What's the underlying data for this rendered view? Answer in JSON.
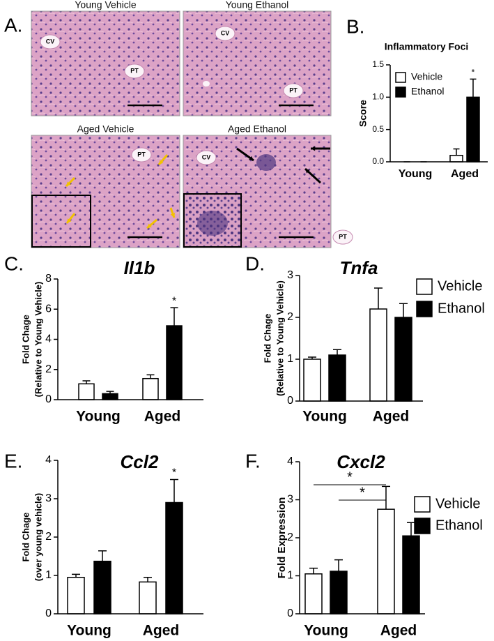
{
  "figure_a": {
    "label": "A.",
    "panels": [
      {
        "title": "Young Vehicle",
        "labels": [
          "CV",
          "PT"
        ]
      },
      {
        "title": "Young Ethanol",
        "labels": [
          "CV",
          "PT"
        ]
      },
      {
        "title": "Aged Vehicle",
        "labels": [
          "PT"
        ]
      },
      {
        "title": "Aged Ethanol",
        "labels": [
          "CV",
          "PT"
        ]
      }
    ]
  },
  "chart_data": [
    {
      "type": "bar",
      "panel": "B.",
      "title": "Inflammatory Foci",
      "ylabel": "Score",
      "categories": [
        "Young",
        "Aged"
      ],
      "series": [
        {
          "name": "Vehicle",
          "color": "#ffffff",
          "values": [
            0,
            0.1
          ],
          "errors": [
            0,
            0.1
          ]
        },
        {
          "name": "Ethanol",
          "color": "#000000",
          "values": [
            0,
            1.0
          ],
          "errors": [
            0,
            0.28
          ]
        }
      ],
      "ylim": [
        0,
        1.5
      ],
      "yticks": [
        {
          "value": 0,
          "label": "0.0"
        },
        0.5,
        {
          "value": 1,
          "label": "1.0"
        },
        1.5
      ],
      "legend": true,
      "annotations": [
        {
          "text": "*",
          "series": 1,
          "category": 1
        }
      ]
    },
    {
      "type": "bar",
      "panel": "C.",
      "title": "Il1b",
      "ylabel": [
        "Fold Chage",
        "(Relative to Young Vehicle)"
      ],
      "categories": [
        "Young",
        "Aged"
      ],
      "series": [
        {
          "name": "Vehicle",
          "color": "#ffffff",
          "values": [
            1.05,
            1.4
          ],
          "errors": [
            0.2,
            0.25
          ]
        },
        {
          "name": "Ethanol",
          "color": "#000000",
          "values": [
            0.4,
            4.9
          ],
          "errors": [
            0.15,
            1.2
          ]
        }
      ],
      "ylim": [
        0,
        8
      ],
      "yticks": [
        0,
        2,
        4,
        6,
        8
      ],
      "legend": false,
      "annotations": [
        {
          "text": "*",
          "series": 1,
          "category": 1
        }
      ]
    },
    {
      "type": "bar",
      "panel": "D.",
      "title": "Tnfa",
      "ylabel": [
        "Fold Chage",
        "(Relative to Young Vehicle)"
      ],
      "categories": [
        "Young",
        "Aged"
      ],
      "series": [
        {
          "name": "Vehicle",
          "color": "#ffffff",
          "values": [
            1.0,
            2.2
          ],
          "errors": [
            0.05,
            0.5
          ]
        },
        {
          "name": "Ethanol",
          "color": "#000000",
          "values": [
            1.1,
            2.0
          ],
          "errors": [
            0.13,
            0.33
          ]
        }
      ],
      "ylim": [
        0,
        3
      ],
      "yticks": [
        0,
        1,
        2,
        3
      ],
      "legend": true,
      "annotations": []
    },
    {
      "type": "bar",
      "panel": "E.",
      "title": "Ccl2",
      "ylabel": [
        "Fold Chage",
        "(over young vehicle)"
      ],
      "categories": [
        "Young",
        "Aged"
      ],
      "series": [
        {
          "name": "Vehicle",
          "color": "#ffffff",
          "values": [
            0.95,
            0.83
          ],
          "errors": [
            0.08,
            0.12
          ]
        },
        {
          "name": "Ethanol",
          "color": "#000000",
          "values": [
            1.37,
            2.9
          ],
          "errors": [
            0.27,
            0.6
          ]
        }
      ],
      "ylim": [
        0,
        4
      ],
      "yticks": [
        0,
        1,
        2,
        3,
        4
      ],
      "legend": false,
      "annotations": [
        {
          "text": "*",
          "series": 1,
          "category": 1
        }
      ]
    },
    {
      "type": "bar",
      "panel": "F.",
      "title": "Cxcl2",
      "ylabel": "Fold Expression",
      "categories": [
        "Young",
        "Aged"
      ],
      "series": [
        {
          "name": "Vehicle",
          "color": "#ffffff",
          "values": [
            1.05,
            2.75
          ],
          "errors": [
            0.15,
            0.6
          ]
        },
        {
          "name": "Ethanol",
          "color": "#000000",
          "values": [
            1.12,
            2.05
          ],
          "errors": [
            0.3,
            0.35
          ]
        }
      ],
      "ylim": [
        0,
        4
      ],
      "yticks": [
        0,
        1,
        2,
        3,
        4
      ],
      "legend": true,
      "annotations": [],
      "comparisons": [
        {
          "text": "*",
          "from": {
            "series": 0,
            "category": 0
          },
          "to": {
            "series": 0,
            "category": 1
          }
        },
        {
          "text": "*",
          "from": {
            "series": 1,
            "category": 0
          },
          "to": {
            "series": 0,
            "category": 1
          }
        }
      ]
    }
  ]
}
